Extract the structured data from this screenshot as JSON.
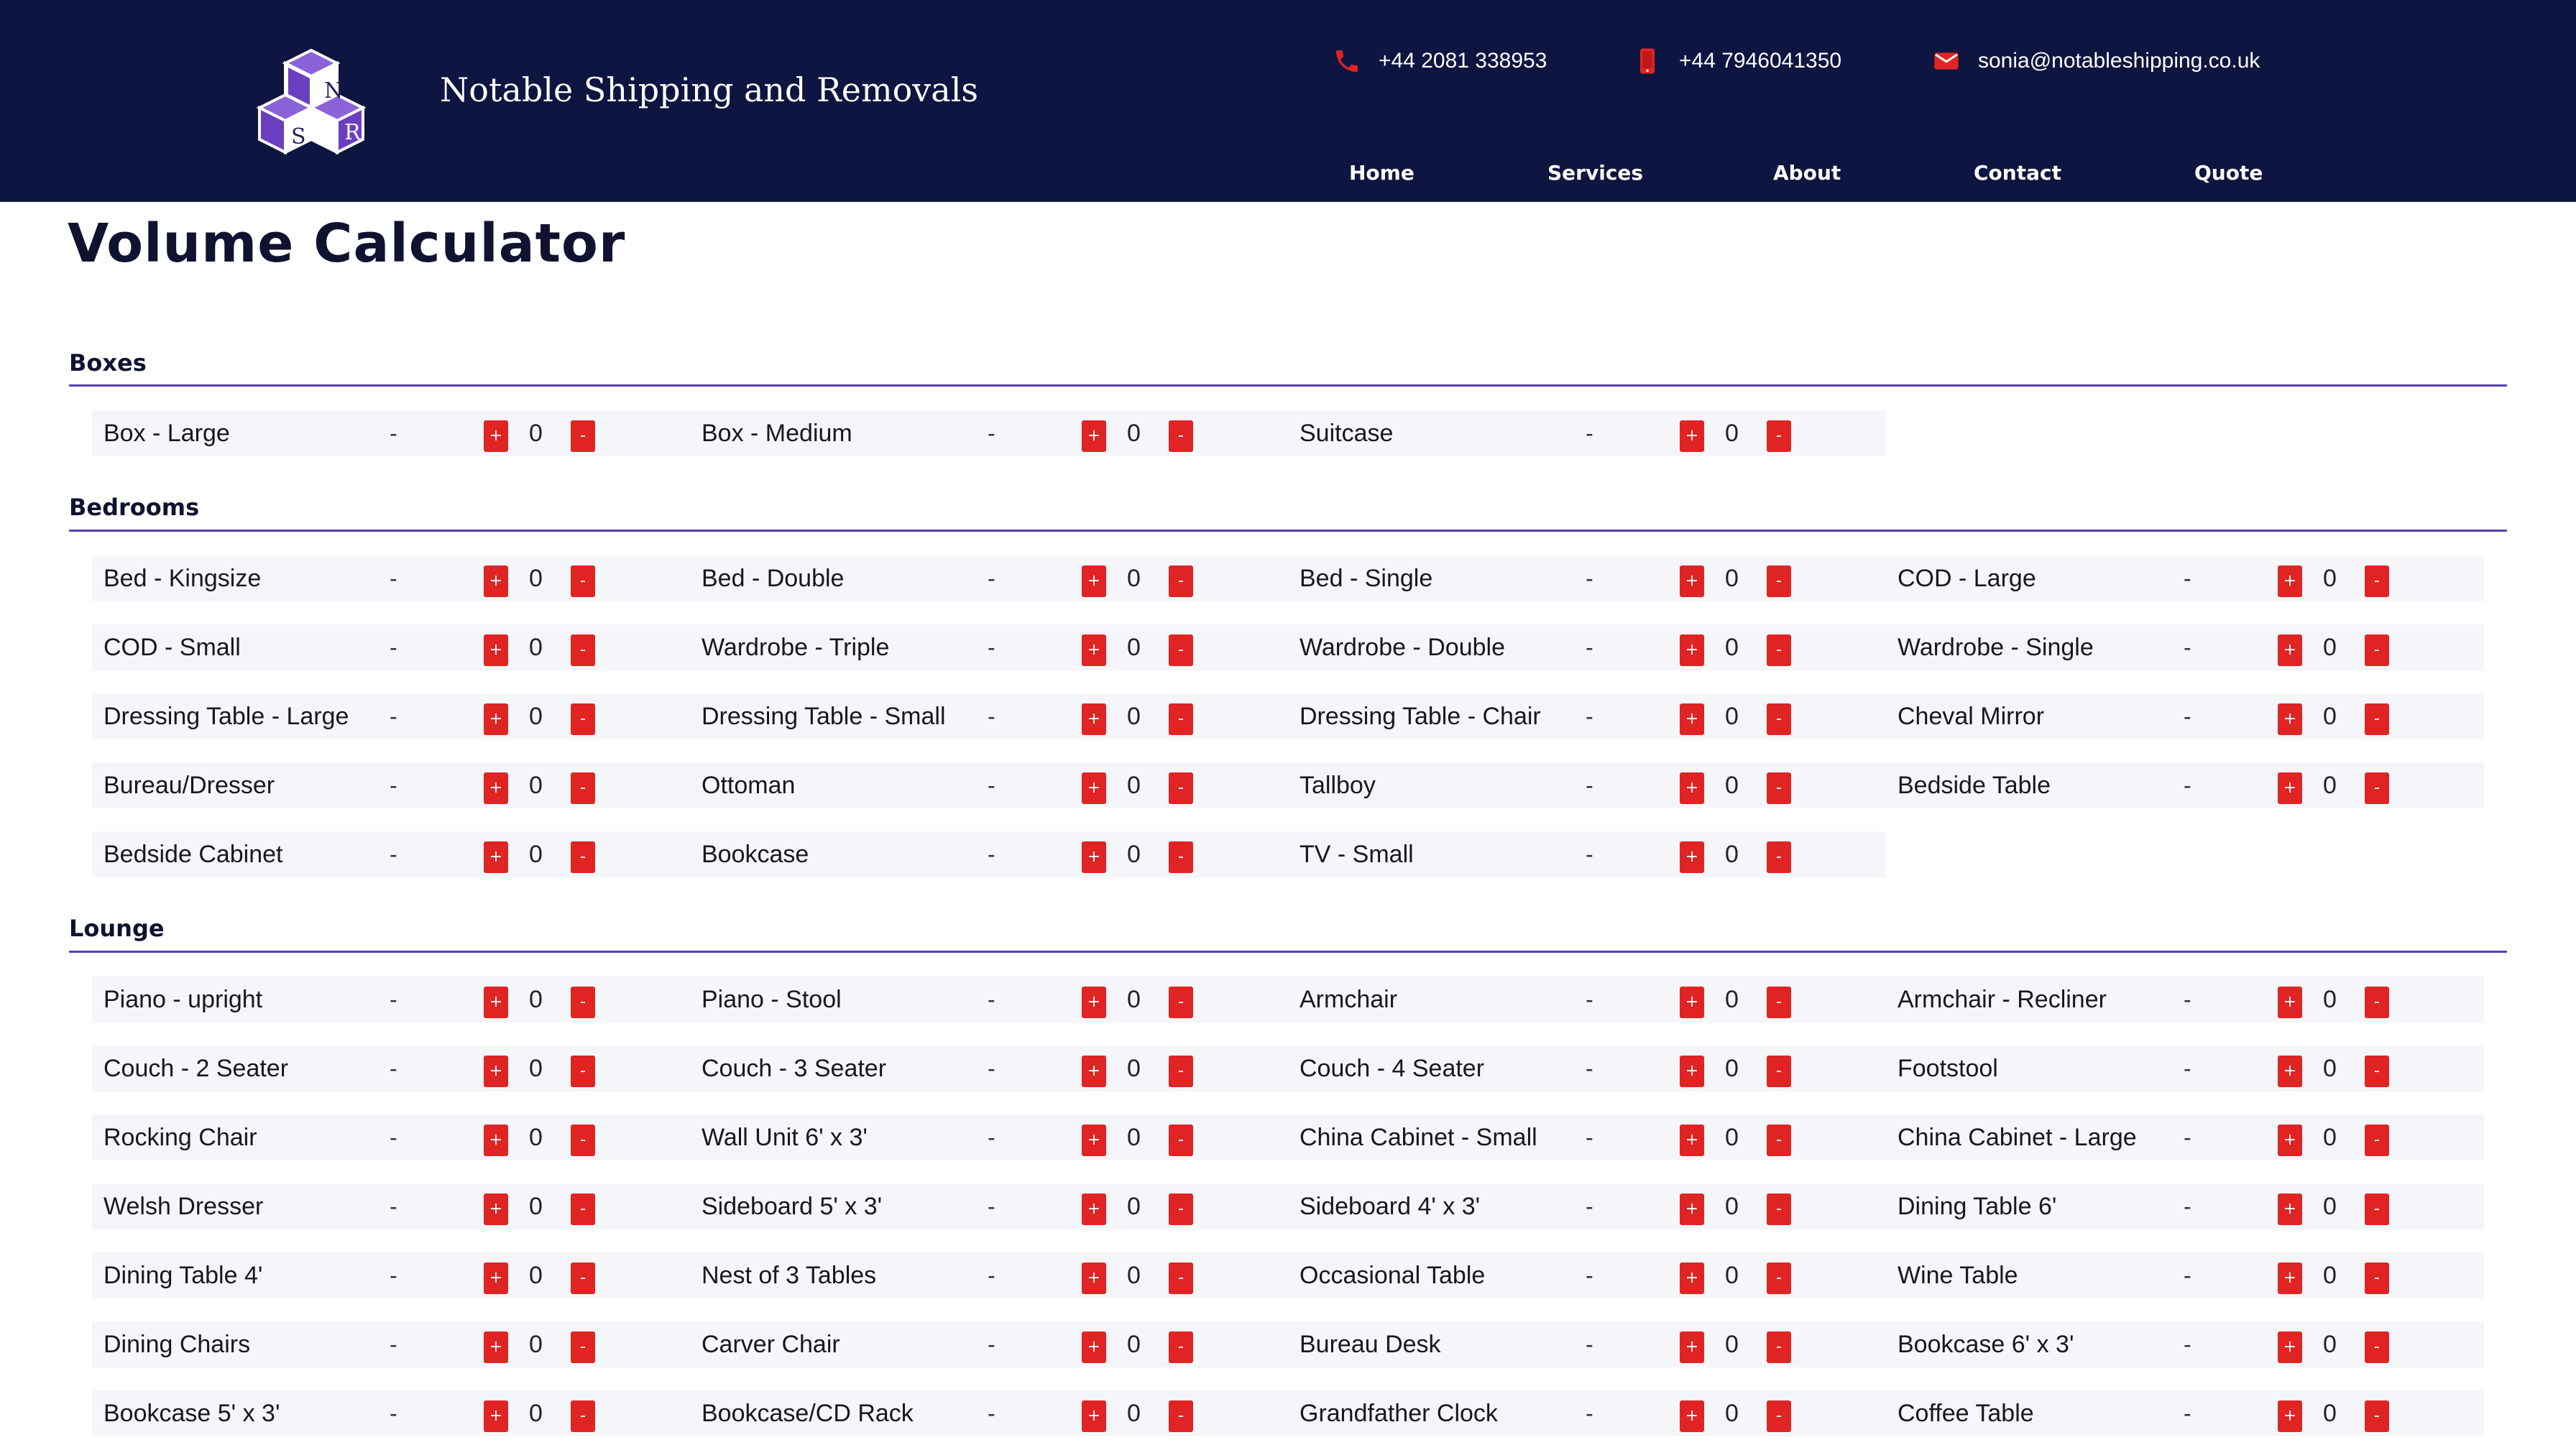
{
  "header": {
    "brand": "Notable Shipping and Removals",
    "logo_letters": [
      "N",
      "S",
      "R"
    ],
    "phone": "+44 2081 338953",
    "mobile": "+44 7946041350",
    "email": "sonia@notableshipping.co.uk",
    "nav": [
      "Home",
      "Services",
      "About",
      "Contact",
      "Quote"
    ]
  },
  "page_title": "Volume Calculator",
  "control_labels": {
    "plus": "+",
    "minus": "-",
    "separator": "-"
  },
  "colors": {
    "header_bg": "#0e1540",
    "accent_rule": "#5a3fb0",
    "button": "#e02424",
    "row_bg": "#f5f6f9"
  },
  "sections": [
    {
      "title": "Boxes",
      "items": [
        {
          "name": "Box - Large",
          "qty": "0"
        },
        {
          "name": "Box - Medium",
          "qty": "0"
        },
        {
          "name": "Suitcase",
          "qty": "0"
        }
      ]
    },
    {
      "title": "Bedrooms",
      "items": [
        {
          "name": "Bed - Kingsize",
          "qty": "0"
        },
        {
          "name": "Bed - Double",
          "qty": "0"
        },
        {
          "name": "Bed - Single",
          "qty": "0"
        },
        {
          "name": "COD - Large",
          "qty": "0"
        },
        {
          "name": "COD - Small",
          "qty": "0"
        },
        {
          "name": "Wardrobe - Triple",
          "qty": "0"
        },
        {
          "name": "Wardrobe - Double",
          "qty": "0"
        },
        {
          "name": "Wardrobe - Single",
          "qty": "0"
        },
        {
          "name": "Dressing Table - Large",
          "qty": "0"
        },
        {
          "name": "Dressing Table - Small",
          "qty": "0"
        },
        {
          "name": "Dressing Table - Chair",
          "qty": "0"
        },
        {
          "name": "Cheval Mirror",
          "qty": "0"
        },
        {
          "name": "Bureau/Dresser",
          "qty": "0"
        },
        {
          "name": "Ottoman",
          "qty": "0"
        },
        {
          "name": "Tallboy",
          "qty": "0"
        },
        {
          "name": "Bedside Table",
          "qty": "0"
        },
        {
          "name": "Bedside Cabinet",
          "qty": "0"
        },
        {
          "name": "Bookcase",
          "qty": "0"
        },
        {
          "name": "TV - Small",
          "qty": "0"
        }
      ]
    },
    {
      "title": "Lounge",
      "items": [
        {
          "name": "Piano - upright",
          "qty": "0"
        },
        {
          "name": "Piano - Stool",
          "qty": "0"
        },
        {
          "name": "Armchair",
          "qty": "0"
        },
        {
          "name": "Armchair - Recliner",
          "qty": "0"
        },
        {
          "name": "Couch - 2 Seater",
          "qty": "0"
        },
        {
          "name": "Couch - 3 Seater",
          "qty": "0"
        },
        {
          "name": "Couch - 4 Seater",
          "qty": "0"
        },
        {
          "name": "Footstool",
          "qty": "0"
        },
        {
          "name": "Rocking Chair",
          "qty": "0"
        },
        {
          "name": "Wall Unit 6' x 3'",
          "qty": "0"
        },
        {
          "name": "China Cabinet - Small",
          "qty": "0"
        },
        {
          "name": "China Cabinet - Large",
          "qty": "0"
        },
        {
          "name": "Welsh Dresser",
          "qty": "0"
        },
        {
          "name": "Sideboard 5' x 3'",
          "qty": "0"
        },
        {
          "name": "Sideboard 4' x 3'",
          "qty": "0"
        },
        {
          "name": "Dining Table 6'",
          "qty": "0"
        },
        {
          "name": "Dining Table 4'",
          "qty": "0"
        },
        {
          "name": "Nest of 3 Tables",
          "qty": "0"
        },
        {
          "name": "Occasional Table",
          "qty": "0"
        },
        {
          "name": "Wine Table",
          "qty": "0"
        },
        {
          "name": "Dining Chairs",
          "qty": "0"
        },
        {
          "name": "Carver Chair",
          "qty": "0"
        },
        {
          "name": "Bureau Desk",
          "qty": "0"
        },
        {
          "name": "Bookcase 6' x 3'",
          "qty": "0"
        },
        {
          "name": "Bookcase 5' x 3'",
          "qty": "0"
        },
        {
          "name": "Bookcase/CD Rack",
          "qty": "0"
        },
        {
          "name": "Grandfather Clock",
          "qty": "0"
        },
        {
          "name": "Coffee Table",
          "qty": "0"
        }
      ]
    }
  ]
}
